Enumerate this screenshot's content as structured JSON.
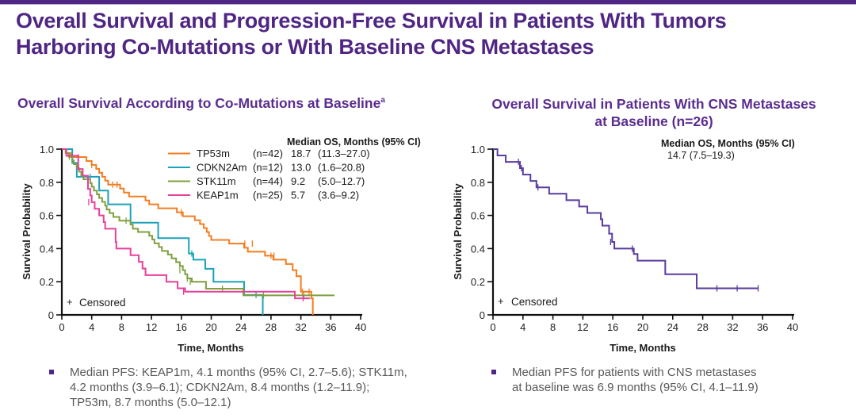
{
  "header": {
    "title_line1": "Overall Survival and Progression-Free Survival in Patients With Tumors",
    "title_line2": "Harboring Co-Mutations or With Baseline CNS Metastases"
  },
  "left_panel": {
    "title": "Overall Survival According to Co-Mutations at Baseline",
    "title_superscript": "a",
    "bullet": "Median PFS: KEAP1m, 4.1 months (95% CI, 2.7–5.6); STK11m, 4.2 months (3.9–6.1); CDKN2Am, 8.4 months (1.2–11.9); TP53m, 8.7 months (5.0–12.1)"
  },
  "right_panel": {
    "title_line1": "Overall Survival in Patients With CNS Metastases",
    "title_line2": "at Baseline (n=26)",
    "bullet_line1": "Median PFS for patients with CNS metastases",
    "bullet_line2": "at baseline was 6.9 months (95% CI, 4.1–11.9)"
  },
  "chart_data": [
    {
      "type": "line",
      "subtype": "kaplan-meier",
      "title": "Overall Survival According to Co-Mutations at Baseline",
      "xlabel": "Time, Months",
      "ylabel": "Survival Probability",
      "xlim": [
        0,
        40
      ],
      "ylim": [
        0,
        1.0
      ],
      "xticks": [
        "0",
        "4",
        "8",
        "12",
        "16",
        "20",
        "24",
        "28",
        "32",
        "36",
        "40"
      ],
      "yticks": [
        "0",
        "0.2",
        "0.4",
        "0.6",
        "0.8",
        "1.0"
      ],
      "grid": false,
      "legend_position": "top-right",
      "legend_header": "Median OS, Months (95% CI)",
      "censored_label": "Censored",
      "series": [
        {
          "name": "TP53m",
          "n": "(n=42)",
          "median": "18.7",
          "ci": "(11.3–27.0)",
          "color": "#f47c20",
          "steps": [
            [
              0,
              1.0
            ],
            [
              0.6,
              0.976
            ],
            [
              1.2,
              0.952
            ],
            [
              3.3,
              0.928
            ],
            [
              4.0,
              0.905
            ],
            [
              4.6,
              0.881
            ],
            [
              5.0,
              0.857
            ],
            [
              5.4,
              0.833
            ],
            [
              5.8,
              0.81
            ],
            [
              6.2,
              0.786
            ],
            [
              7.8,
              0.762
            ],
            [
              8.3,
              0.738
            ],
            [
              9.0,
              0.714
            ],
            [
              11.2,
              0.69
            ],
            [
              11.7,
              0.667
            ],
            [
              12.9,
              0.643
            ],
            [
              15.4,
              0.619
            ],
            [
              16.2,
              0.595
            ],
            [
              17.8,
              0.571
            ],
            [
              18.5,
              0.548
            ],
            [
              19.0,
              0.524
            ],
            [
              19.4,
              0.5
            ],
            [
              19.7,
              0.476
            ],
            [
              20.0,
              0.452
            ],
            [
              22.4,
              0.43
            ],
            [
              24.4,
              0.405
            ],
            [
              24.9,
              0.381
            ],
            [
              27.2,
              0.357
            ],
            [
              28.3,
              0.333
            ],
            [
              30.0,
              0.307
            ],
            [
              30.9,
              0.27
            ],
            [
              31.4,
              0.233
            ],
            [
              32.0,
              0.14
            ],
            [
              33.4,
              0.1
            ],
            [
              33.6,
              0.0
            ]
          ],
          "censors": [
            [
              2.2,
              0.952
            ],
            [
              4.0,
              0.905
            ],
            [
              6.8,
              0.786
            ],
            [
              7.4,
              0.786
            ],
            [
              16.0,
              0.619
            ],
            [
              24.5,
              0.43
            ],
            [
              25.5,
              0.43
            ],
            [
              28.0,
              0.357
            ],
            [
              28.4,
              0.357
            ],
            [
              32.2,
              0.14
            ],
            [
              33.1,
              0.14
            ]
          ]
        },
        {
          "name": "CDKN2Am",
          "n": "(n=12)",
          "median": "13.0",
          "ci": "(1.6–20.8)",
          "color": "#1ba3b8",
          "steps": [
            [
              0,
              1.0
            ],
            [
              1.4,
              0.917
            ],
            [
              2.0,
              0.833
            ],
            [
              5.0,
              0.75
            ],
            [
              6.2,
              0.667
            ],
            [
              9.2,
              0.556
            ],
            [
              12.9,
              0.463
            ],
            [
              17.0,
              0.37
            ],
            [
              17.6,
              0.333
            ],
            [
              19.2,
              0.278
            ],
            [
              20.3,
              0.2
            ],
            [
              24.4,
              0.12
            ],
            [
              26.9,
              0.0
            ]
          ],
          "censors": [
            [
              3.8,
              0.833
            ],
            [
              17.4,
              0.37
            ],
            [
              26.0,
              0.12
            ]
          ]
        },
        {
          "name": "STK11m",
          "n": "(n=44)",
          "median": "9.2",
          "ci": "(5.0–12.7)",
          "color": "#7ea03e",
          "steps": [
            [
              0,
              1.0
            ],
            [
              0.5,
              0.977
            ],
            [
              0.9,
              0.955
            ],
            [
              1.4,
              0.932
            ],
            [
              1.6,
              0.909
            ],
            [
              2.0,
              0.886
            ],
            [
              2.3,
              0.864
            ],
            [
              2.6,
              0.841
            ],
            [
              2.9,
              0.818
            ],
            [
              3.8,
              0.795
            ],
            [
              4.0,
              0.773
            ],
            [
              4.3,
              0.75
            ],
            [
              4.7,
              0.727
            ],
            [
              5.0,
              0.705
            ],
            [
              5.4,
              0.682
            ],
            [
              5.8,
              0.659
            ],
            [
              6.0,
              0.636
            ],
            [
              6.4,
              0.614
            ],
            [
              6.9,
              0.591
            ],
            [
              7.7,
              0.568
            ],
            [
              9.2,
              0.545
            ],
            [
              9.5,
              0.52
            ],
            [
              10.2,
              0.5
            ],
            [
              11.7,
              0.477
            ],
            [
              12.1,
              0.455
            ],
            [
              12.4,
              0.432
            ],
            [
              13.0,
              0.409
            ],
            [
              13.4,
              0.386
            ],
            [
              14.2,
              0.364
            ],
            [
              14.7,
              0.341
            ],
            [
              15.3,
              0.318
            ],
            [
              15.8,
              0.295
            ],
            [
              16.2,
              0.27
            ],
            [
              16.5,
              0.245
            ],
            [
              16.8,
              0.22
            ],
            [
              17.4,
              0.2
            ],
            [
              19.3,
              0.158
            ],
            [
              24.3,
              0.118
            ],
            [
              36.5,
              0.118
            ]
          ],
          "censors": [
            [
              1.0,
              0.955
            ],
            [
              8.6,
              0.568
            ],
            [
              15.8,
              0.27
            ],
            [
              16.8,
              0.22
            ],
            [
              17.2,
              0.2
            ],
            [
              21.5,
              0.158
            ],
            [
              27.0,
              0.118
            ],
            [
              32.4,
              0.118
            ]
          ]
        },
        {
          "name": "KEAP1m",
          "n": "(n=25)",
          "median": "5.7",
          "ci": "(3.6–9.2)",
          "color": "#e8409a",
          "steps": [
            [
              0,
              1.0
            ],
            [
              0.6,
              0.96
            ],
            [
              2.2,
              0.88
            ],
            [
              2.8,
              0.84
            ],
            [
              3.5,
              0.76
            ],
            [
              3.8,
              0.72
            ],
            [
              4.0,
              0.68
            ],
            [
              4.4,
              0.64
            ],
            [
              5.0,
              0.6
            ],
            [
              5.6,
              0.56
            ],
            [
              5.8,
              0.52
            ],
            [
              7.2,
              0.44
            ],
            [
              7.3,
              0.4
            ],
            [
              9.2,
              0.36
            ],
            [
              10.3,
              0.32
            ],
            [
              10.8,
              0.28
            ],
            [
              11.2,
              0.24
            ],
            [
              14.0,
              0.2
            ],
            [
              15.5,
              0.16
            ],
            [
              16.5,
              0.14
            ],
            [
              31.2,
              0.1
            ],
            [
              33.2,
              0.1
            ]
          ],
          "censors": [
            [
              3.6,
              0.68
            ],
            [
              16.3,
              0.14
            ],
            [
              32.3,
              0.1
            ]
          ]
        }
      ]
    },
    {
      "type": "line",
      "subtype": "kaplan-meier",
      "title": "Overall Survival in Patients With CNS Metastases at Baseline (n=26)",
      "xlabel": "Time, Months",
      "ylabel": "Survival Probability",
      "xlim": [
        0,
        40
      ],
      "ylim": [
        0,
        1.0
      ],
      "xticks": [
        "0",
        "4",
        "8",
        "12",
        "16",
        "20",
        "24",
        "28",
        "32",
        "36",
        "40"
      ],
      "yticks": [
        "0",
        "0.2",
        "0.4",
        "0.6",
        "0.8",
        "1.0"
      ],
      "grid": false,
      "legend_position": "top-right",
      "legend_header": "Median OS, Months (95% CI)",
      "legend_value": "14.7 (7.5–19.3)",
      "censored_label": "Censored",
      "series": [
        {
          "name": "CNS metastases",
          "color": "#5a3b9e",
          "steps": [
            [
              0,
              1.0
            ],
            [
              0.6,
              0.962
            ],
            [
              1.7,
              0.923
            ],
            [
              3.6,
              0.885
            ],
            [
              4.0,
              0.846
            ],
            [
              5.0,
              0.808
            ],
            [
              5.8,
              0.769
            ],
            [
              7.5,
              0.731
            ],
            [
              9.8,
              0.692
            ],
            [
              11.5,
              0.654
            ],
            [
              12.6,
              0.615
            ],
            [
              14.4,
              0.577
            ],
            [
              14.6,
              0.538
            ],
            [
              15.5,
              0.49
            ],
            [
              15.9,
              0.44
            ],
            [
              16.2,
              0.4
            ],
            [
              18.8,
              0.367
            ],
            [
              19.3,
              0.327
            ],
            [
              23.0,
              0.245
            ],
            [
              27.2,
              0.16
            ],
            [
              35.4,
              0.16
            ]
          ],
          "censors": [
            [
              3.4,
              0.923
            ],
            [
              3.8,
              0.885
            ],
            [
              6.0,
              0.769
            ],
            [
              15.7,
              0.44
            ],
            [
              18.6,
              0.4
            ],
            [
              29.9,
              0.16
            ],
            [
              32.6,
              0.16
            ],
            [
              35.4,
              0.16
            ]
          ]
        }
      ]
    }
  ]
}
